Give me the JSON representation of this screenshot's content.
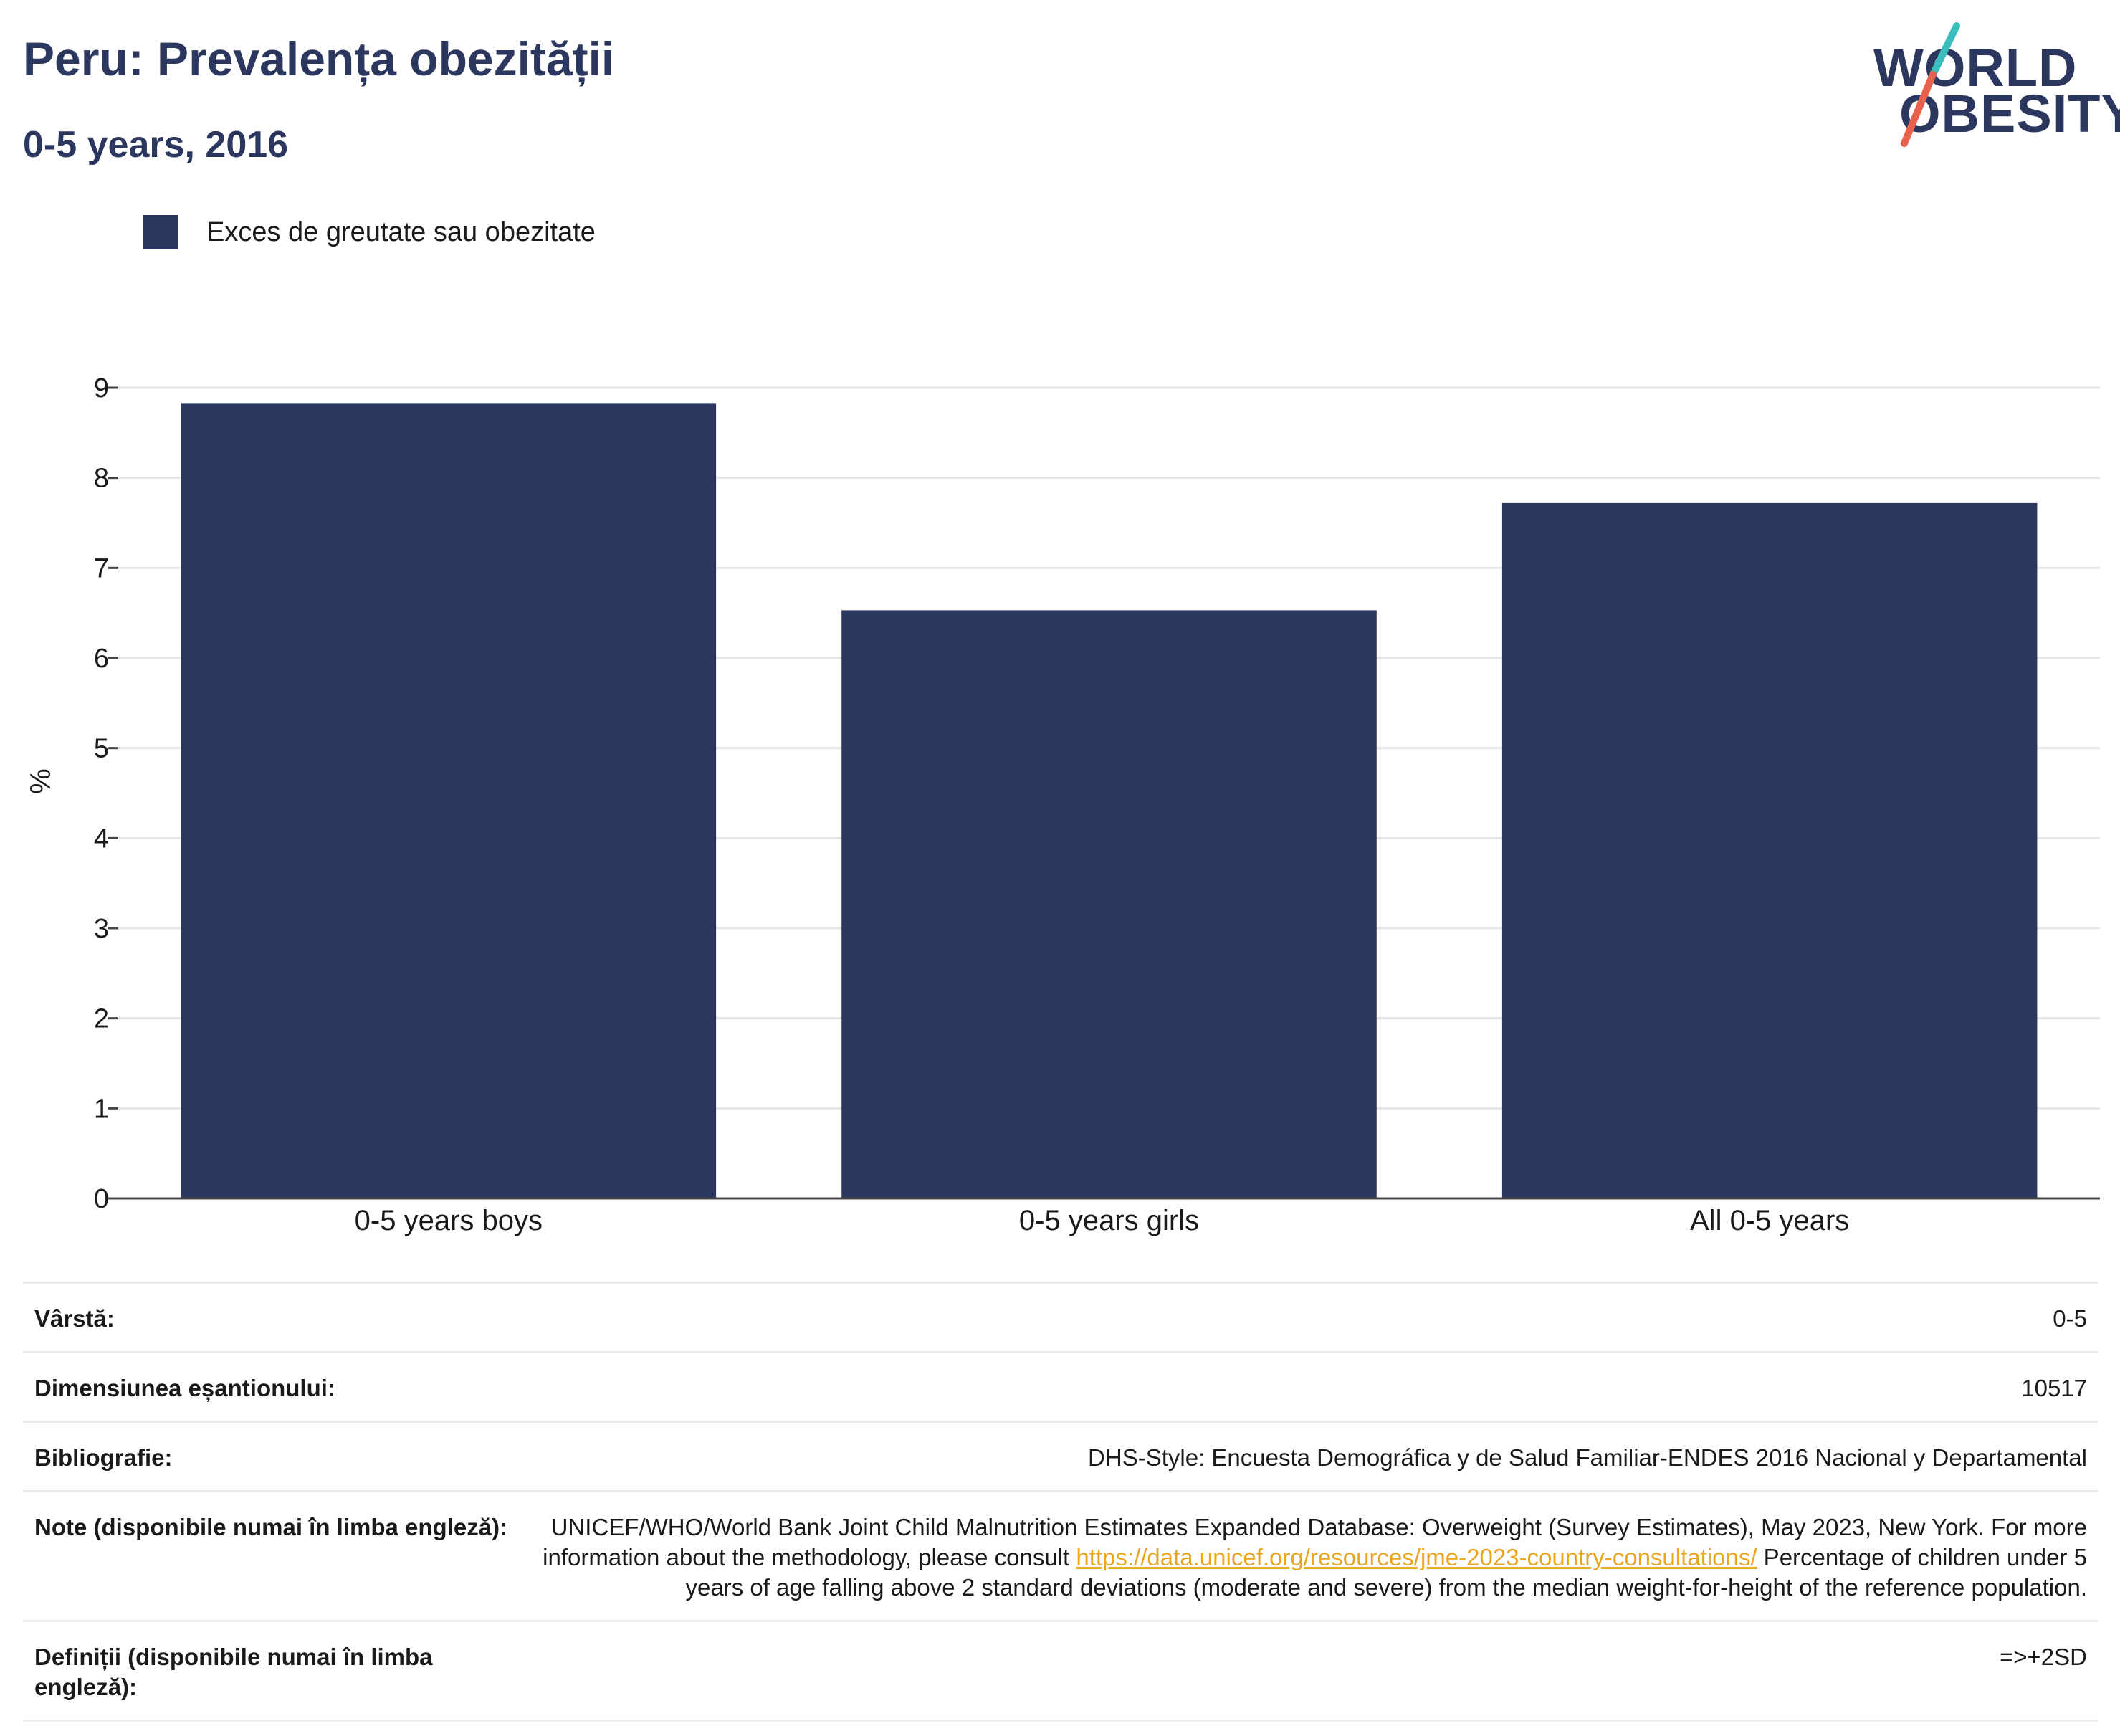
{
  "header": {
    "title": "Peru: Prevalența obezității",
    "subtitle": "0-5 years, 2016"
  },
  "logo": {
    "line1": "WORLD",
    "line2": "OBESITY",
    "colors": {
      "text": "#2b375f",
      "slash_top": "#3bbdbd",
      "slash_bottom": "#e8614d"
    }
  },
  "legend": {
    "items": [
      {
        "label": "Exces de greutate sau obezitate",
        "color": "#2b375f"
      }
    ]
  },
  "chart_data": {
    "type": "bar",
    "title": "Peru: Prevalența obezității",
    "subtitle": "0-5 years, 2016",
    "categories": [
      "0-5 years boys",
      "0-5 years girls",
      "All 0-5 years"
    ],
    "series": [
      {
        "name": "Exces de greutate sau obezitate",
        "values": [
          8.83,
          6.53,
          7.72
        ],
        "color": "#2b375f"
      }
    ],
    "xlabel": "",
    "ylabel": "%",
    "ylim": [
      0,
      9
    ],
    "yticks": [
      0,
      1,
      2,
      3,
      4,
      5,
      6,
      7,
      8,
      9
    ],
    "grid": true,
    "legend_position": "top-left"
  },
  "info": {
    "age": {
      "label": "Vârstă:",
      "value": "0-5"
    },
    "sample": {
      "label": "Dimensiunea eșantionului:",
      "value": "10517"
    },
    "bibliography": {
      "label": "Bibliografie:",
      "value": "DHS-Style: Encuesta Demográfica y de Salud Familiar-ENDES 2016 Nacional y Departamental"
    },
    "notes": {
      "label": "Note (disponibile numai în limba engleză):",
      "text_before": "UNICEF/WHO/World Bank Joint Child Malnutrition Estimates Expanded Database: Overweight (Survey Estimates), May 2023, New York. For more information about the methodology, please consult ",
      "link": "https://data.unicef.org/resources/jme-2023-country-consultations/",
      "text_after": " Percentage of children under 5 years of age falling above 2 standard deviations (moderate and severe) from the median weight-for-height of the reference population."
    },
    "definitions": {
      "label": "Definiții (disponibile numai în limba engleză):",
      "value": "=>+2SD"
    }
  }
}
